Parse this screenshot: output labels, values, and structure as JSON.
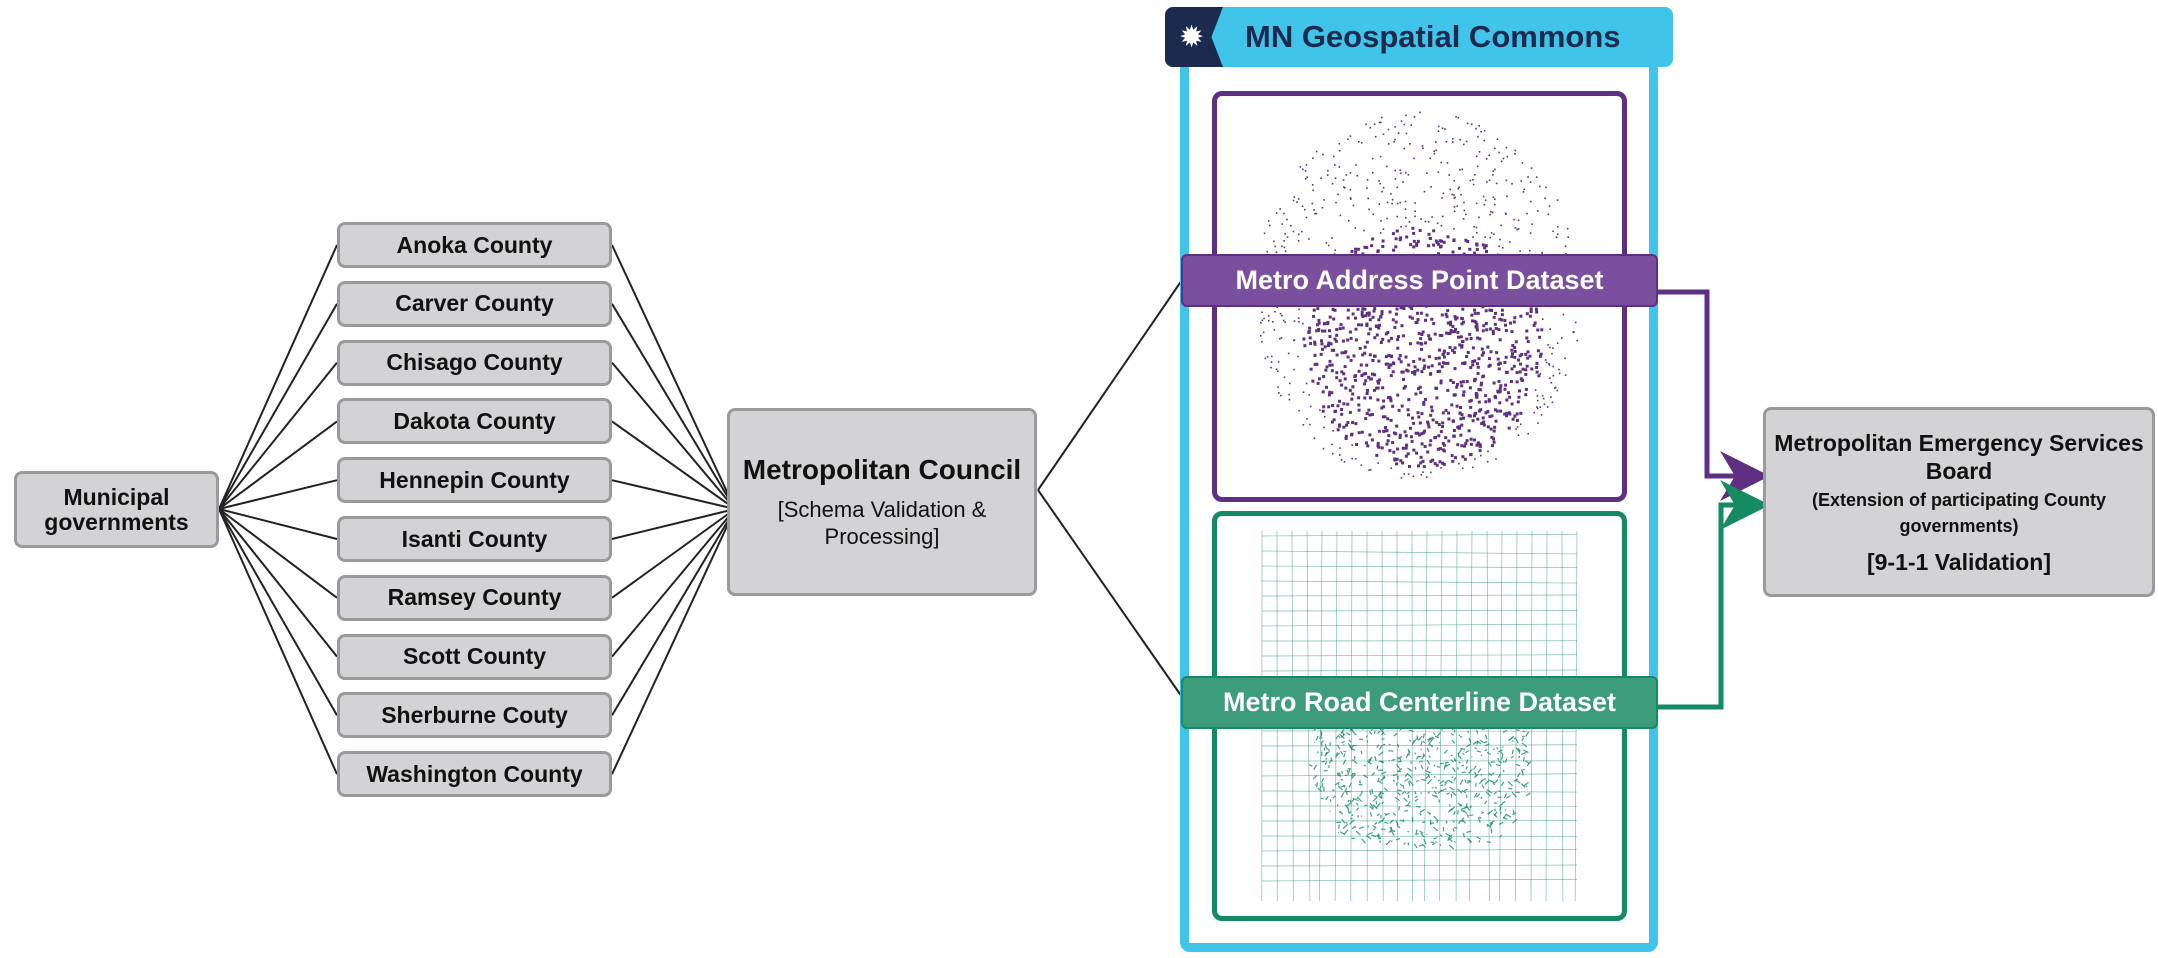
{
  "municipal": {
    "label": "Municipal governments"
  },
  "counties": [
    "Anoka County",
    "Carver County",
    "Chisago County",
    "Dakota County",
    "Hennepin County",
    "Isanti County",
    "Ramsey County",
    "Scott County",
    "Sherburne Couty",
    "Washington County"
  ],
  "met_council": {
    "title": "Metropolitan Council",
    "subtitle": "[Schema Validation & Processing]"
  },
  "commons": {
    "title": "MN Geospatial Commons",
    "logo_icon": "star-burst-icon"
  },
  "datasets": {
    "address": {
      "label": "Metro Address Point Dataset",
      "color": "#5e2f83"
    },
    "road": {
      "label": "Metro Road Centerline Dataset",
      "color": "#158a63"
    }
  },
  "mesb": {
    "title": "Metropolitan Emergency Services Board",
    "note": "(Extension of participating County governments)",
    "validation": "[9-1-1 Validation]"
  },
  "colors": {
    "box_fill": "#d3d3d5",
    "box_border": "#9a9a9c",
    "commons_accent": "#40c4ea",
    "commons_dark": "#1b2a4e"
  }
}
